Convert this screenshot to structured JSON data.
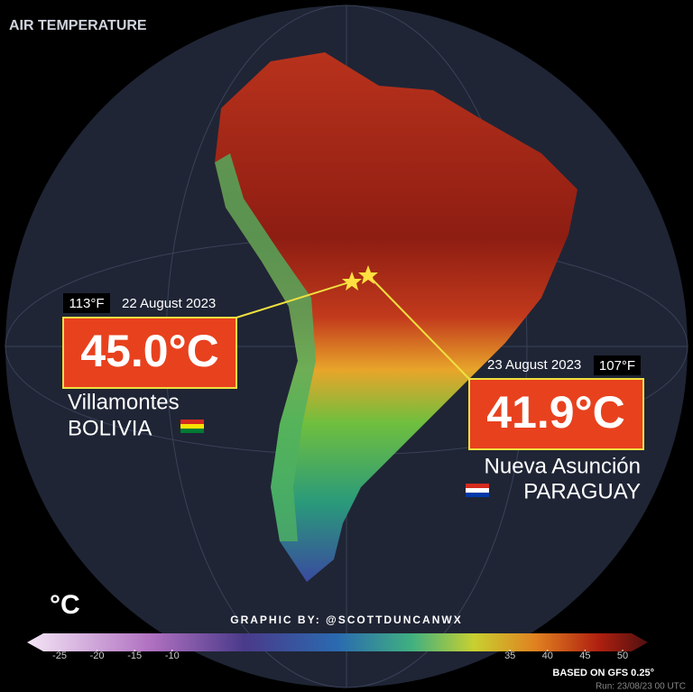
{
  "header": {
    "title": "AIR TEMPERATURE"
  },
  "callouts": [
    {
      "fahrenheit": "113°F",
      "date": "22 August 2023",
      "celsius": "45.0°C",
      "place": "Villamontes",
      "country": "BOLIVIA"
    },
    {
      "fahrenheit": "107°F",
      "date": "23 August 2023",
      "celsius": "41.9°C",
      "place": "Nueva Asunción",
      "country": "PARAGUAY"
    }
  ],
  "legend": {
    "unit": "°C",
    "ticks": [
      -25,
      -20,
      -15,
      -10,
      35,
      40,
      45,
      50
    ]
  },
  "credit": "GRAPHIC BY: @SCOTTDUNCANWX",
  "source": "BASED ON GFS 0.25°",
  "run": "Run: 23/08/23 00 UTC"
}
